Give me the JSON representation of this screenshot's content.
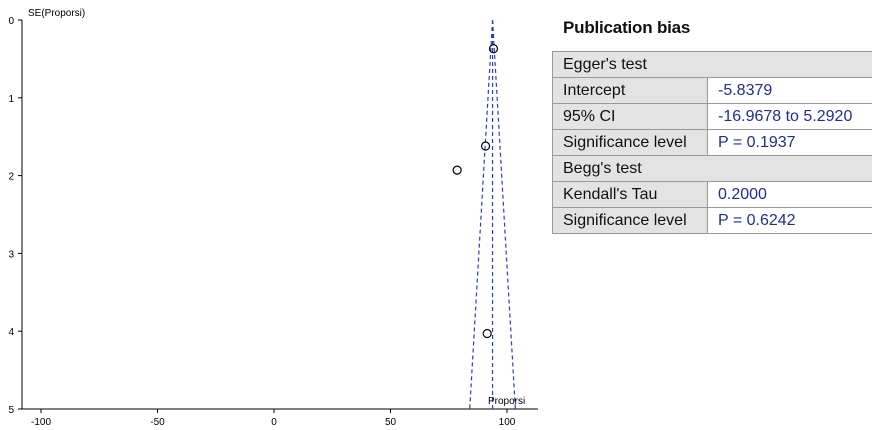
{
  "chart_data": {
    "type": "scatter",
    "subtype": "funnel",
    "ylabel": "SE(Proporsi)",
    "xlabel": "Proporsi",
    "xlim": [
      -110,
      110
    ],
    "ylim": [
      0,
      5
    ],
    "y_reversed": true,
    "x_ticks": [
      "-100",
      "-50",
      "0",
      "50",
      "100"
    ],
    "y_ticks": [
      "0",
      "1",
      "2",
      "3",
      "4",
      "5"
    ],
    "points": [
      {
        "x": 94.2,
        "y": 0.37
      },
      {
        "x": 90.8,
        "y": 1.62
      },
      {
        "x": 78.6,
        "y": 1.93
      },
      {
        "x": 91.5,
        "y": 4.03
      }
    ],
    "pooled_estimate": 93.8,
    "funnel_limits": {
      "apex": [
        93.8,
        0
      ],
      "base_left": [
        84.0,
        5
      ],
      "base_right": [
        103.6,
        5
      ]
    },
    "line_color": "#2b3cc4",
    "point_color": "#000000"
  },
  "publication_bias": {
    "title": "Publication bias",
    "eggers": {
      "heading": "Egger's test",
      "rows": [
        {
          "label": "Intercept",
          "value": "-5.8379"
        },
        {
          "label": "95% CI",
          "value": "-16.9678 to 5.2920"
        },
        {
          "label": "Significance level",
          "value": "P = 0.1937"
        }
      ]
    },
    "beggs": {
      "heading": "Begg's test",
      "rows": [
        {
          "label": "Kendall's Tau",
          "value": "0.2000"
        },
        {
          "label": "Significance level",
          "value": "P = 0.6242"
        }
      ]
    }
  }
}
